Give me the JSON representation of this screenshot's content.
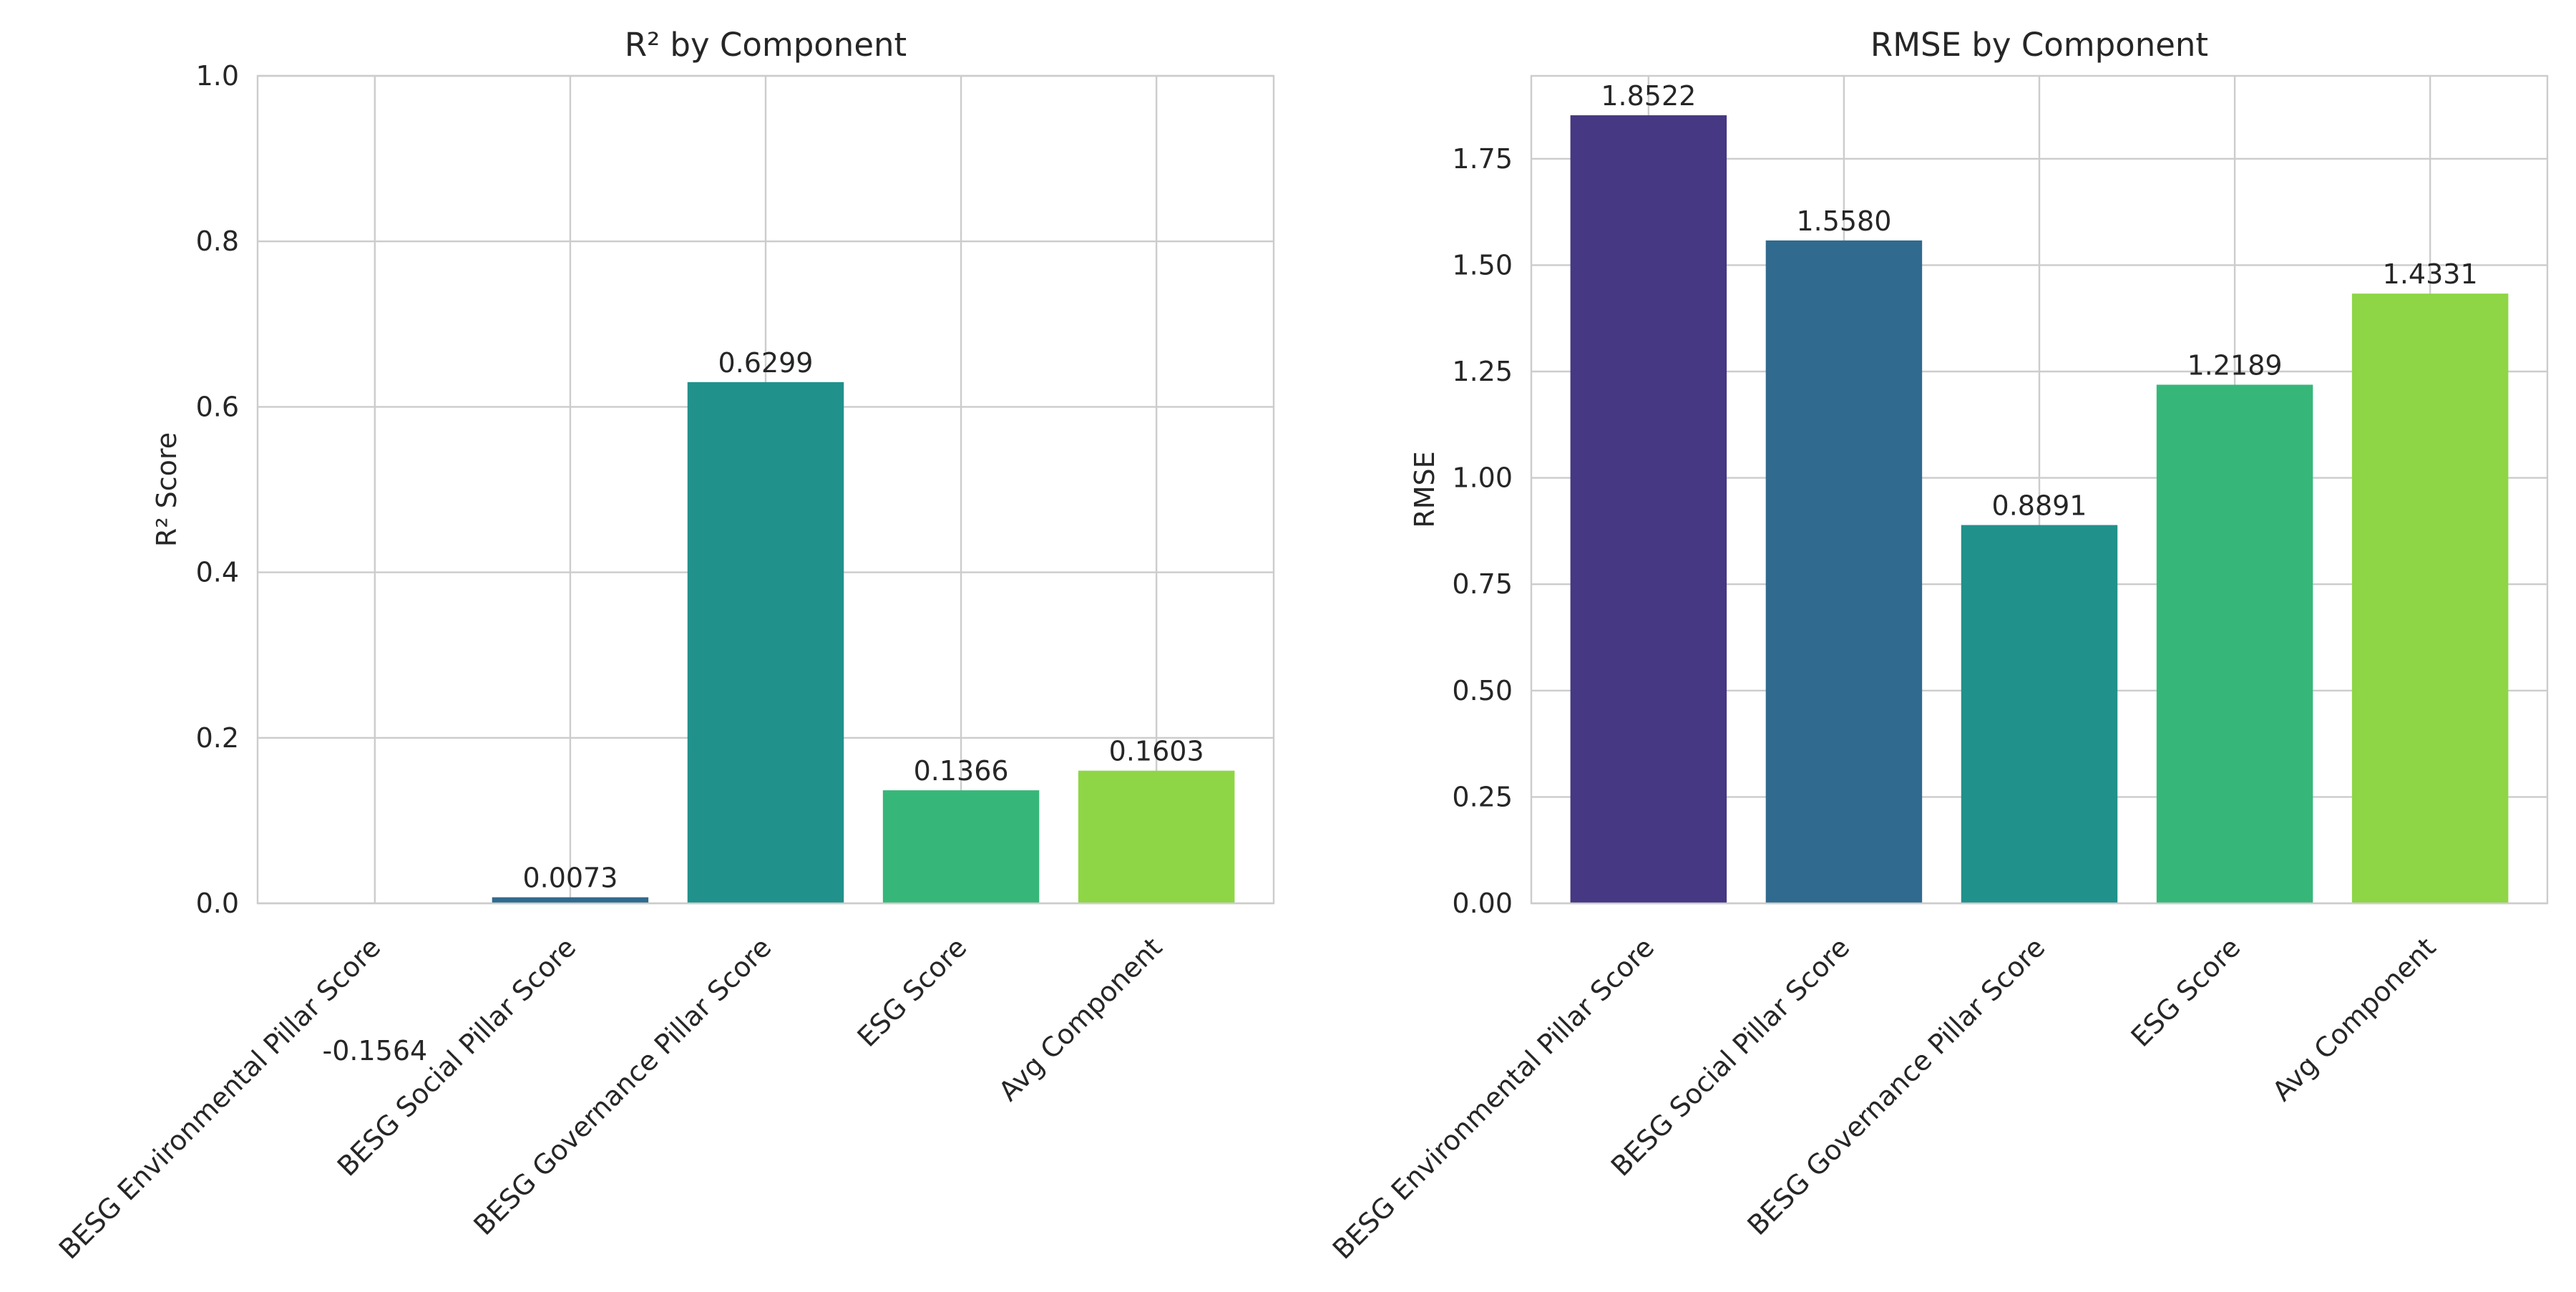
{
  "colors": [
    "#463882",
    "#306a8e",
    "#21918c",
    "#36b779",
    "#8ed645"
  ],
  "chart_data": [
    {
      "type": "bar",
      "title": "R² by Component",
      "xlabel": "",
      "ylabel": "R² Score",
      "categories": [
        "BESG Environmental Pillar Score",
        "BESG Social Pillar Score",
        "BESG Governance Pillar Score",
        "ESG Score",
        "Avg Component"
      ],
      "values": [
        -0.1564,
        0.0073,
        0.6299,
        0.1366,
        0.1603
      ],
      "value_labels": [
        "-0.1564",
        "0.0073",
        "0.6299",
        "0.1366",
        "0.1603"
      ],
      "ylim": [
        0,
        1.0
      ],
      "yticks": [
        0,
        0.2,
        0.4,
        0.6,
        0.8,
        1.0
      ],
      "ytick_labels": [
        "0.0",
        "0.2",
        "0.4",
        "0.6",
        "0.8",
        "1.0"
      ],
      "grid": true
    },
    {
      "type": "bar",
      "title": "RMSE by Component",
      "xlabel": "",
      "ylabel": "RMSE",
      "categories": [
        "BESG Environmental Pillar Score",
        "BESG Social Pillar Score",
        "BESG Governance Pillar Score",
        "ESG Score",
        "Avg Component"
      ],
      "values": [
        1.8522,
        1.558,
        0.8891,
        1.2189,
        1.4331
      ],
      "value_labels": [
        "1.8522",
        "1.5580",
        "0.8891",
        "1.2189",
        "1.4331"
      ],
      "ylim": [
        0,
        1.9448
      ],
      "yticks": [
        0,
        0.25,
        0.5,
        0.75,
        1.0,
        1.25,
        1.5,
        1.75
      ],
      "ytick_labels": [
        "0.00",
        "0.25",
        "0.50",
        "0.75",
        "1.00",
        "1.25",
        "1.50",
        "1.75"
      ],
      "grid": true
    }
  ]
}
